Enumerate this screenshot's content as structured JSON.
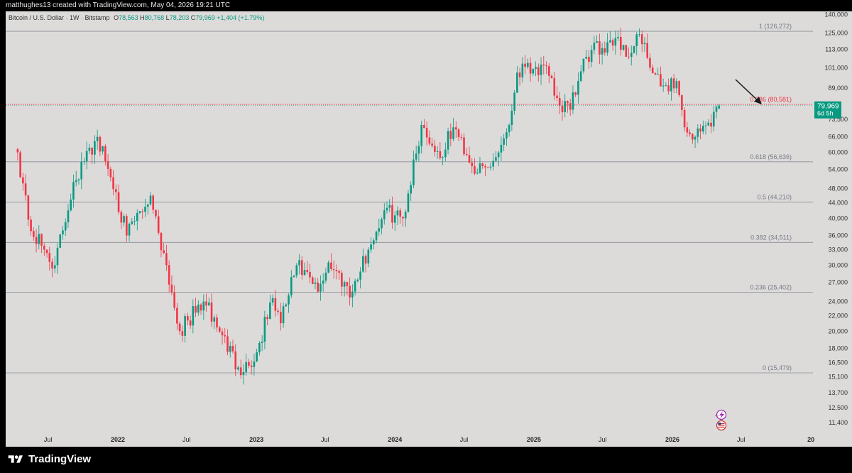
{
  "header": {
    "credit": "matthughes13 created with TradingView.com, May 04, 2026 19:21 UTC"
  },
  "legend": {
    "symbol": "Bitcoin / U.S. Dollar · 1W · Bitstamp",
    "open_label": "O",
    "open": "78,563",
    "high_label": "H",
    "high": "80,768",
    "low_label": "L",
    "low": "78,203",
    "close_label": "C",
    "close": "79,969",
    "change": "+1,404 (+1.79%)"
  },
  "price_tag": {
    "price": "79,969",
    "countdown": "6d 5h"
  },
  "footer": {
    "brand": "TradingView"
  },
  "icons": [
    "purple-flash-icon",
    "us-flag-icon",
    "down-right-arrow-icon"
  ],
  "colors": {
    "up": "#089981",
    "down": "#f23645",
    "fib_line": "#787b86",
    "fib_highlight": "#f23645",
    "background": "#dcdbda"
  },
  "chart_data": {
    "type": "candlestick",
    "title": "Bitcoin / U.S. Dollar · 1W · Bitstamp",
    "y_scale": "log",
    "ylim": [
      10800,
      142000
    ],
    "y_ticks": [
      140000,
      125000,
      113000,
      101000,
      89000,
      79969,
      73500,
      66000,
      60000,
      54000,
      48000,
      44000,
      40000,
      36000,
      33000,
      30000,
      27000,
      24000,
      22000,
      20000,
      18000,
      16500,
      15100,
      13700,
      12500,
      11400
    ],
    "y_tick_labels": [
      "140,000",
      "125,000",
      "113,000",
      "101,000",
      "89,000",
      "79,969",
      "73,500",
      "66,000",
      "60,000",
      "54,000",
      "48,000",
      "44,000",
      "40,000",
      "36,000",
      "33,000",
      "30,000",
      "27,000",
      "24,000",
      "22,000",
      "20,000",
      "18,000",
      "16,500",
      "15,100",
      "13,700",
      "12,500",
      "11,400"
    ],
    "x_ticks": [
      "Jul",
      "2022",
      "Jul",
      "2023",
      "Jul",
      "2024",
      "Jul",
      "2025",
      "Jul",
      "2026",
      "Jul",
      "20"
    ],
    "fib_levels": [
      {
        "label": "1 (126,272)",
        "value": 126272
      },
      {
        "label": "0.786 (80,581)",
        "value": 80581,
        "highlight": true
      },
      {
        "label": "0.618 (56,636)",
        "value": 56636
      },
      {
        "label": "0.5 (44,210)",
        "value": 44210
      },
      {
        "label": "0.382 (34,511)",
        "value": 34511
      },
      {
        "label": "0.236 (25,402)",
        "value": 25402
      },
      {
        "label": "0 (15,479)",
        "value": 15479
      }
    ],
    "anchors": [
      [
        "2021-04-12",
        60000
      ],
      [
        "2021-05-17",
        37000
      ],
      [
        "2021-06-21",
        33000
      ],
      [
        "2021-07-19",
        30000
      ],
      [
        "2021-09-06",
        50000
      ],
      [
        "2021-11-08",
        66000
      ],
      [
        "2021-12-27",
        47000
      ],
      [
        "2022-01-24",
        36000
      ],
      [
        "2022-03-28",
        46000
      ],
      [
        "2022-05-09",
        30000
      ],
      [
        "2022-06-13",
        20000
      ],
      [
        "2022-08-15",
        24000
      ],
      [
        "2022-10-03",
        19500
      ],
      [
        "2022-11-14",
        16000
      ],
      [
        "2022-12-26",
        16600
      ],
      [
        "2023-02-13",
        24500
      ],
      [
        "2023-03-06",
        21000
      ],
      [
        "2023-04-17",
        30000
      ],
      [
        "2023-06-12",
        25500
      ],
      [
        "2023-07-10",
        30500
      ],
      [
        "2023-09-11",
        25500
      ],
      [
        "2023-10-23",
        33000
      ],
      [
        "2023-12-04",
        42000
      ],
      [
        "2024-01-22",
        40000
      ],
      [
        "2024-03-11",
        71000
      ],
      [
        "2024-04-29",
        58000
      ],
      [
        "2024-06-03",
        70000
      ],
      [
        "2024-08-05",
        53000
      ],
      [
        "2024-09-09",
        55000
      ],
      [
        "2024-10-28",
        71000
      ],
      [
        "2024-11-18",
        98000
      ],
      [
        "2024-12-16",
        104000
      ],
      [
        "2025-02-10",
        96000
      ],
      [
        "2025-03-10",
        80000
      ],
      [
        "2025-04-07",
        78000
      ],
      [
        "2025-05-19",
        108000
      ],
      [
        "2025-07-14",
        118000
      ],
      [
        "2025-08-11",
        122000
      ],
      [
        "2025-09-01",
        108000
      ],
      [
        "2025-10-06",
        124000
      ],
      [
        "2025-11-03",
        101000
      ],
      [
        "2025-12-01",
        90000
      ],
      [
        "2026-01-12",
        93000
      ],
      [
        "2026-02-02",
        70000
      ],
      [
        "2026-03-02",
        66000
      ],
      [
        "2026-04-06",
        72000
      ],
      [
        "2026-05-04",
        79969
      ]
    ],
    "last_candle": {
      "date": "2026-05-04",
      "open": 78563,
      "high": 80768,
      "low": 78203,
      "close": 79969
    }
  }
}
